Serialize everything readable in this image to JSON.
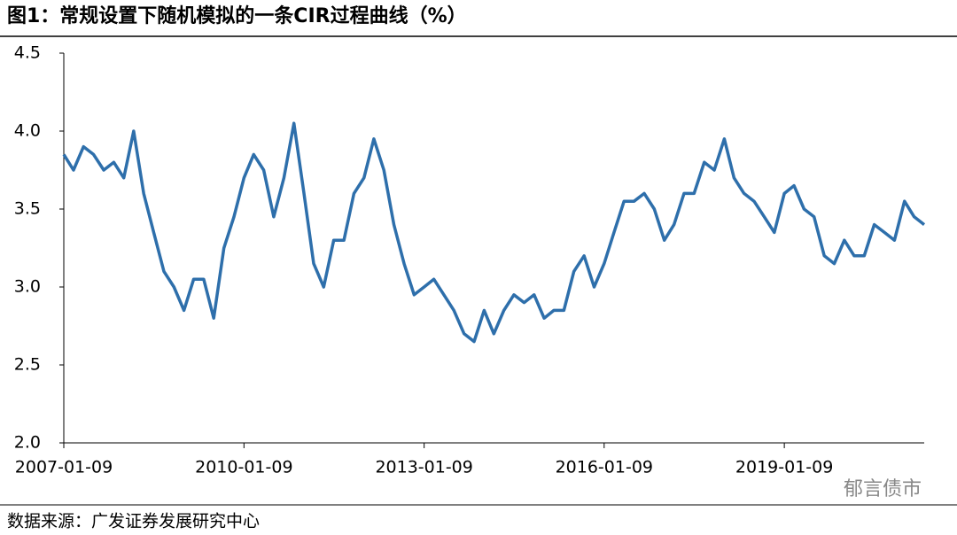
{
  "chart_data": {
    "type": "line",
    "title": "图1：常规设置下随机模拟的一条CIR过程曲线（%）",
    "source": "数据来源：广发证券发展研究中心",
    "watermark": "郁言债市",
    "color": "#2e6fab",
    "x": [
      "2007-01-09",
      "2007-03-09",
      "2007-05-09",
      "2007-07-09",
      "2007-09-09",
      "2007-11-09",
      "2008-01-09",
      "2008-03-09",
      "2008-05-09",
      "2008-07-09",
      "2008-09-09",
      "2008-11-09",
      "2009-01-09",
      "2009-03-09",
      "2009-05-09",
      "2009-07-09",
      "2009-09-09",
      "2009-11-09",
      "2010-01-09",
      "2010-03-09",
      "2010-05-09",
      "2010-07-09",
      "2010-09-09",
      "2010-11-09",
      "2011-01-09",
      "2011-03-09",
      "2011-05-09",
      "2011-07-09",
      "2011-09-09",
      "2011-11-09",
      "2012-01-09",
      "2012-03-09",
      "2012-05-09",
      "2012-07-09",
      "2012-09-09",
      "2012-11-09",
      "2013-01-09",
      "2013-03-09",
      "2013-05-09",
      "2013-07-09",
      "2013-09-09",
      "2013-11-09",
      "2014-01-09",
      "2014-03-09",
      "2014-05-09",
      "2014-07-09",
      "2014-09-09",
      "2014-11-09",
      "2015-01-09",
      "2015-03-09",
      "2015-05-09",
      "2015-07-09",
      "2015-09-09",
      "2015-11-09",
      "2016-01-09",
      "2016-03-09",
      "2016-05-09",
      "2016-07-09",
      "2016-09-09",
      "2016-11-09",
      "2017-01-09",
      "2017-03-09",
      "2017-05-09",
      "2017-07-09",
      "2017-09-09",
      "2017-11-09",
      "2018-01-09",
      "2018-03-09",
      "2018-05-09",
      "2018-07-09",
      "2018-09-09",
      "2018-11-09",
      "2019-01-09",
      "2019-03-09",
      "2019-05-09",
      "2019-07-09",
      "2019-09-09",
      "2019-11-09",
      "2020-01-09",
      "2020-03-09",
      "2020-05-09",
      "2020-07-09",
      "2020-09-09",
      "2020-11-09",
      "2021-01-09",
      "2021-03-09",
      "2021-05-09"
    ],
    "values": [
      3.85,
      3.75,
      3.9,
      3.85,
      3.75,
      3.8,
      3.7,
      4.0,
      3.6,
      3.35,
      3.1,
      3.0,
      2.85,
      3.05,
      3.05,
      2.8,
      3.25,
      3.45,
      3.7,
      3.85,
      3.75,
      3.45,
      3.7,
      4.05,
      3.6,
      3.15,
      3.0,
      3.3,
      3.3,
      3.6,
      3.7,
      3.95,
      3.75,
      3.4,
      3.15,
      2.95,
      3.0,
      3.05,
      2.95,
      2.85,
      2.7,
      2.65,
      2.85,
      2.7,
      2.85,
      2.95,
      2.9,
      2.95,
      2.8,
      2.85,
      2.85,
      3.1,
      3.2,
      3.0,
      3.15,
      3.35,
      3.55,
      3.55,
      3.6,
      3.5,
      3.3,
      3.4,
      3.6,
      3.6,
      3.8,
      3.75,
      3.95,
      3.7,
      3.6,
      3.55,
      3.45,
      3.35,
      3.6,
      3.65,
      3.5,
      3.45,
      3.2,
      3.15,
      3.3,
      3.2,
      3.2,
      3.4,
      3.35,
      3.3,
      3.55,
      3.45,
      3.4
    ],
    "xlim": [
      "2007-01-09",
      "2021-05-09"
    ],
    "xticks": [
      "2007-01-09",
      "2010-01-09",
      "2013-01-09",
      "2016-01-09",
      "2019-01-09"
    ],
    "ylim": [
      2,
      4.5
    ],
    "yticks": [
      {
        "value": 2,
        "label": "2.0"
      },
      2.5,
      {
        "value": 3,
        "label": "3.0"
      },
      3.5,
      {
        "value": 4,
        "label": "4.0"
      },
      4.5
    ]
  }
}
